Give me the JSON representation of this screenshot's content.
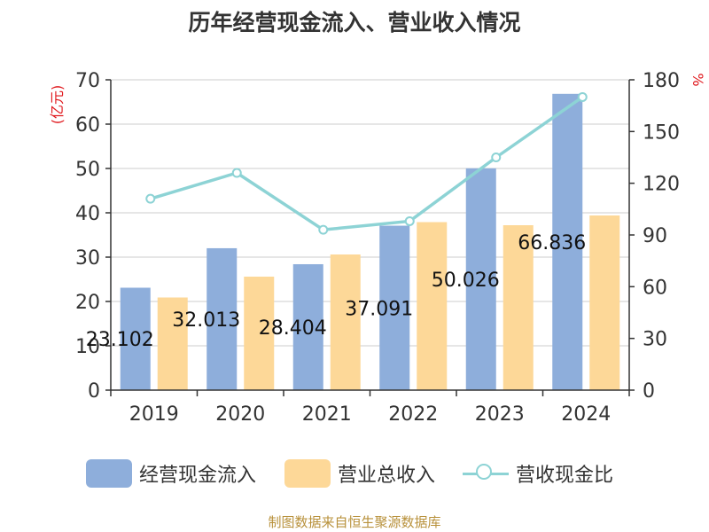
{
  "title": "历年经营现金流入、营业收入情况",
  "left_unit": "(亿元)",
  "right_unit": "%",
  "source": "制图数据来自恒生聚源数据库",
  "colors": {
    "inflow": "#8eaedb",
    "revenue": "#fdd898",
    "ratio": "#8dd3d5",
    "unit": "#e0191e",
    "source": "#b8913b"
  },
  "legend": [
    "经营现金流入",
    "营业总收入",
    "营收现金比"
  ],
  "chart_data": {
    "type": "bar",
    "title": "历年经营现金流入、营业收入情况",
    "categories": [
      "2019",
      "2020",
      "2021",
      "2022",
      "2023",
      "2024"
    ],
    "series": [
      {
        "name": "经营现金流入",
        "type": "bar",
        "axis": "left",
        "values": [
          23.102,
          32.013,
          28.404,
          37.091,
          50.026,
          66.836
        ],
        "labels": [
          "23.102",
          "32.013",
          "28.404",
          "37.091",
          "50.026",
          "66.836"
        ]
      },
      {
        "name": "营业总收入",
        "type": "bar",
        "axis": "left",
        "values": [
          20.9,
          25.6,
          30.6,
          37.9,
          37.2,
          39.4
        ]
      },
      {
        "name": "营收现金比",
        "type": "line",
        "axis": "right",
        "values": [
          111,
          126,
          93,
          98,
          135,
          170
        ]
      }
    ],
    "left_axis": {
      "label": "(亿元)",
      "min": 0,
      "max": 70,
      "ticks": [
        0,
        10,
        20,
        30,
        40,
        50,
        60,
        70
      ]
    },
    "right_axis": {
      "label": "%",
      "min": 0,
      "max": 180,
      "ticks": [
        0,
        30,
        60,
        90,
        120,
        150,
        180
      ]
    },
    "grid": true,
    "legend_position": "bottom"
  }
}
